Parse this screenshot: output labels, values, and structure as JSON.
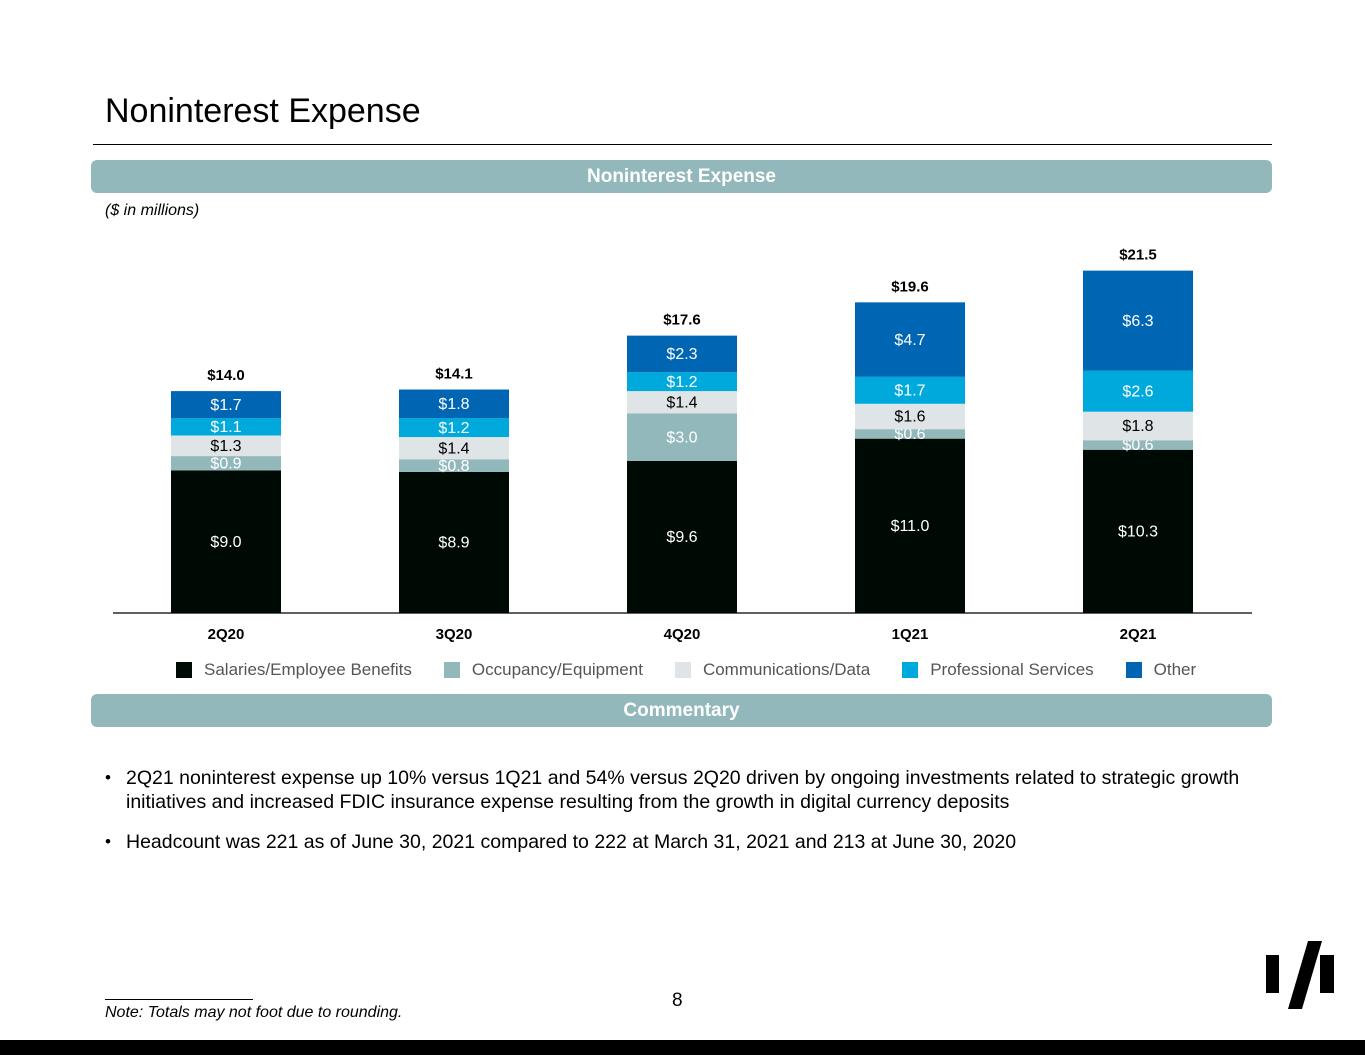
{
  "page": {
    "title": "Noninterest Expense",
    "page_number": "8",
    "footnote": "Note: Totals may not foot due to rounding."
  },
  "chart_section": {
    "banner": "Noninterest Expense",
    "units_note": "($ in millions)"
  },
  "commentary": {
    "banner": "Commentary",
    "bullets": [
      "2Q21 noninterest expense up 10% versus 1Q21 and 54% versus 2Q20 driven by ongoing investments related to strategic growth initiatives and increased FDIC insurance expense resulting from the growth in digital currency deposits",
      "Headcount was 221 as of June 30, 2021 compared to 222 at March 31, 2021 and 213 at June 30, 2020"
    ]
  },
  "colors": {
    "salaries": "#000a05",
    "occupancy": "#93b8bb",
    "communications": "#dfe4e7",
    "professional": "#00a9dc",
    "other": "#0066b3",
    "banner": "#93b8bb"
  },
  "chart_data": {
    "type": "bar",
    "stacked": true,
    "title": "Noninterest Expense",
    "ylabel": "$ in millions",
    "categories": [
      "2Q20",
      "3Q20",
      "4Q20",
      "1Q21",
      "2Q21"
    ],
    "series": [
      {
        "name": "Salaries/Employee Benefits",
        "color_key": "salaries",
        "values": [
          9.0,
          8.9,
          9.6,
          11.0,
          10.3
        ],
        "labels": [
          "$9.0",
          "$8.9",
          "$9.6",
          "$11.0",
          "$10.3"
        ],
        "label_color": "#ffffff"
      },
      {
        "name": "Occupancy/Equipment",
        "color_key": "occupancy",
        "values": [
          0.9,
          0.8,
          3.0,
          0.6,
          0.6
        ],
        "labels": [
          "$0.9",
          "$0.8",
          "$3.0",
          "$0.6",
          "$0.6"
        ],
        "label_color": "#ffffff"
      },
      {
        "name": "Communications/Data",
        "color_key": "communications",
        "values": [
          1.3,
          1.4,
          1.4,
          1.6,
          1.8
        ],
        "labels": [
          "$1.3",
          "$1.4",
          "$1.4",
          "$1.6",
          "$1.8"
        ],
        "label_color": "#000000"
      },
      {
        "name": "Professional Services",
        "color_key": "professional",
        "values": [
          1.1,
          1.2,
          1.2,
          1.7,
          2.6
        ],
        "labels": [
          "$1.1",
          "$1.2",
          "$1.2",
          "$1.7",
          "$2.6"
        ],
        "label_color": "#ffffff"
      },
      {
        "name": "Other",
        "color_key": "other",
        "values": [
          1.7,
          1.8,
          2.3,
          4.7,
          6.3
        ],
        "labels": [
          "$1.7",
          "$1.8",
          "$2.3",
          "$4.7",
          "$6.3"
        ],
        "label_color": "#ffffff"
      }
    ],
    "totals": [
      14.0,
      14.1,
      17.6,
      19.6,
      21.5
    ],
    "total_labels": [
      "$14.0",
      "$14.1",
      "$17.6",
      "$19.6",
      "$21.5"
    ],
    "ylim": [
      0,
      22.5
    ],
    "grid": false,
    "legend_position": "bottom"
  }
}
